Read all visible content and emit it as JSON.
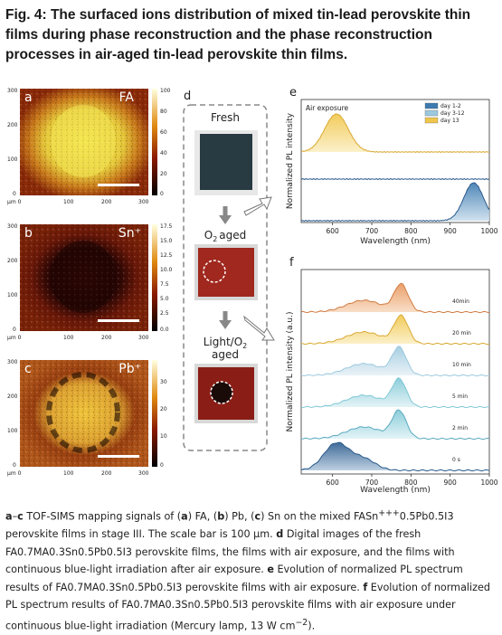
{
  "figure": {
    "title": "Fig. 4: The surfaced ions distribution of mixed tin-lead perovskite thin films during phase reconstruction and the phase reconstruction processes in air-aged tin-lead perovskite thin films.",
    "panel_labels": {
      "a": "a",
      "b": "b",
      "c": "c",
      "d": "d",
      "e": "e",
      "f": "f"
    },
    "maps": [
      {
        "label": "FA",
        "colorbar": [
          "100",
          "80",
          "60",
          "40",
          "20",
          "0"
        ],
        "x_ticks": [
          "µm 0",
          "100",
          "200",
          "300"
        ],
        "y_ticks": [
          "300",
          "200",
          "100",
          "0"
        ]
      },
      {
        "label": "Sn⁺",
        "colorbar": [
          "17.5",
          "15.0",
          "12.5",
          "10.0",
          "7.5",
          "5.0",
          "2.5",
          "0.0"
        ],
        "x_ticks": [
          "µm 0",
          "100",
          "200",
          "300"
        ],
        "y_ticks": [
          "300",
          "200",
          "100",
          "0"
        ]
      },
      {
        "label": "Pb⁺",
        "colorbar": [
          "30",
          "20",
          "10",
          "0"
        ],
        "x_ticks": [
          "µm 0",
          "100",
          "200",
          "300"
        ],
        "y_ticks": [
          "300",
          "200",
          "100",
          "0"
        ]
      }
    ],
    "panel_d": {
      "fresh": "Fresh",
      "o2_aged": "O₂ aged",
      "light_o2_aged": "Light/O₂\naged",
      "light": "Light/O",
      "light_sub": "2",
      "aged": "aged",
      "o2": "O",
      "o2_sub": "2",
      "o2_word": "aged"
    },
    "colors": {
      "orange": "#e8955a",
      "yellow": "#f0c64a",
      "blue": "#2a5a8c",
      "teal": "#7fc8d6"
    }
  },
  "chart_data": [
    {
      "type": "line",
      "panel": "e",
      "annotation": "Air exposure",
      "xlabel": "Wavelength (nm)",
      "ylabel": "Normalized PL intensity",
      "xlim": [
        520,
        1000
      ],
      "x_ticks": [
        600,
        700,
        800,
        900,
        1000
      ],
      "series": [
        {
          "name": "day 1-2",
          "peak": 960,
          "width": 25,
          "offset": 0
        },
        {
          "name": "day 3-12",
          "peak": null,
          "width": 0,
          "offset": 1
        },
        {
          "name": "day 13",
          "peak": 610,
          "width": 30,
          "offset": 2
        }
      ]
    },
    {
      "type": "line",
      "panel": "f",
      "xlabel": "Wavelength (nm)",
      "ylabel": "Normalized PL intensity (a.u.)",
      "xlim": [
        520,
        1000
      ],
      "x_ticks": [
        600,
        700,
        800,
        900,
        1000
      ],
      "series": [
        {
          "name": "0 s",
          "peak": 610
        },
        {
          "name": "2 min",
          "peak": 770
        },
        {
          "name": "5 min",
          "peak": 770
        },
        {
          "name": "10 min",
          "peak": 770
        },
        {
          "name": "20 min",
          "peak": 775
        },
        {
          "name": "40min",
          "peak": 775
        }
      ]
    }
  ],
  "caption": {
    "p1": "a",
    "p1b": "–",
    "p1c": "c",
    "text1": " TOF-SIMS mapping signals of (",
    "a": "a",
    "text2": ") FA, (",
    "b": "b",
    "text3": ") Pb, (",
    "c": "c",
    "text4": ") Sn on the mixed FASn",
    "sup1": "+++",
    "text5": "0.5Pb0.5I3 perovskite films in stage III. The scale bar is 100 µm. ",
    "d": "d",
    "text6": " Digital images of the fresh FA0.7MA0.3Sn0.5Pb0.5I3 perovskite films, the films with air exposure, and the films with continuous blue-light irradiation after air exposure. ",
    "e": "e",
    "text7": " Evolution of normalized PL spectrum results of FA0.7MA0.3Sn0.5Pb0.5I3 perovskite films with air exposure. ",
    "f": "f",
    "text8": " Evolution of normalized PL spectrum results of FA0.7MA0.3Sn0.5Pb0.5I3 perovskite films with air exposure under continuous blue-light irradiation (Mercury lamp, 13 W cm",
    "sup2": "−2",
    "text9": ")."
  }
}
